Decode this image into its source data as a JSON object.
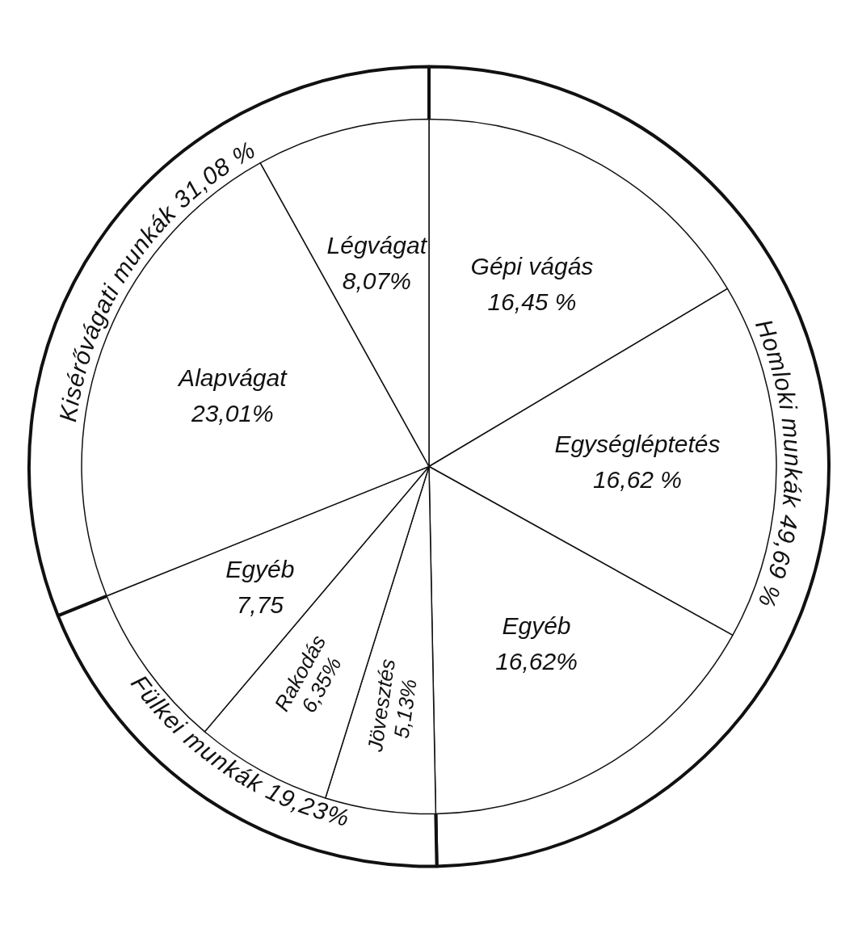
{
  "chart_data": [
    {
      "type": "donut",
      "categories": [
        "Homloki munkák",
        "Fülkei munkák",
        "Kisérővágati munkák"
      ],
      "values": [
        49.69,
        19.23,
        31.08
      ],
      "value_labels": [
        "49,69 %",
        "19,23%",
        "31,08 %"
      ],
      "colors": [
        "#ffffff",
        "#ffffff",
        "#ffffff"
      ]
    },
    {
      "type": "pie",
      "categories": [
        "Gépi vágás",
        "Egységléptetés",
        "Egyéb",
        "Jövesztés",
        "Rakodás",
        "Egyéb",
        "Alapvágat",
        "Légvágat"
      ],
      "values": [
        16.45,
        16.62,
        16.62,
        5.13,
        6.35,
        7.75,
        23.01,
        8.07
      ],
      "value_labels": [
        "16,45 %",
        "16,62 %",
        "16,62%",
        "5,13%",
        "6,35%",
        "7,75",
        "23,01%",
        "8,07%"
      ],
      "colors": [
        "#ffffff",
        "#ffffff",
        "#ffffff",
        "#ffffff",
        "#ffffff",
        "#ffffff",
        "#ffffff",
        "#ffffff"
      ]
    }
  ]
}
